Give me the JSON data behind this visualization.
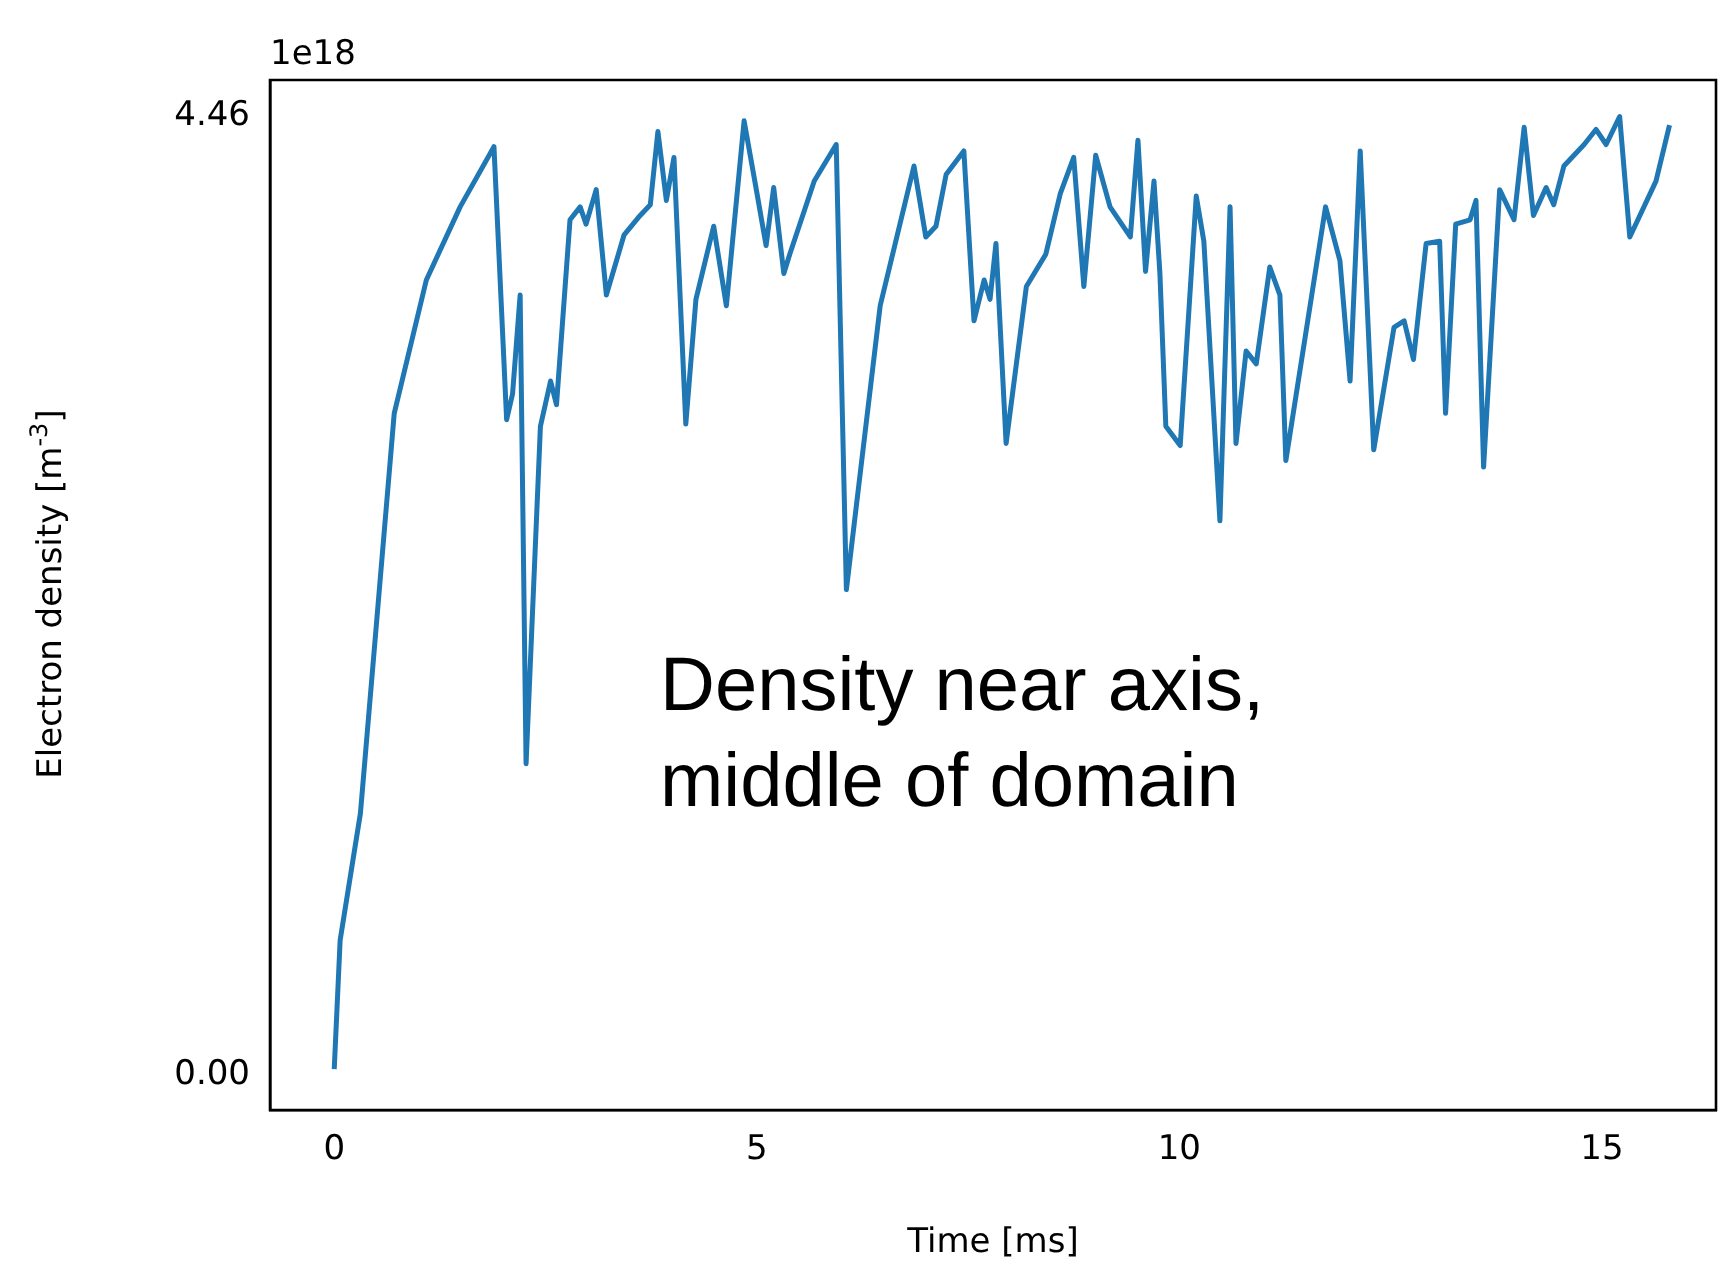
{
  "chart_data": {
    "type": "line",
    "xlabel": "Time [ms]",
    "ylabel": "Electron density [m$^{-3}$]",
    "annotations": [
      "1e18",
      "Density near axis,\nmiddle of domain"
    ],
    "xlim": [
      -0.76,
      16.35
    ],
    "ylim": [
      -0.16,
      4.63
    ],
    "xticks": [
      0,
      5,
      10,
      15
    ],
    "yticks": [
      {
        "value": 0,
        "label": "0.00"
      },
      {
        "value": 4.46,
        "label": "4.46"
      }
    ],
    "grid": false,
    "legend": false,
    "marker": "none",
    "line_style": "solid",
    "series": [
      {
        "color": "#1f77b4",
        "x": [
          0,
          0.07,
          0.31,
          0.71,
          1.09,
          1.49,
          1.89,
          2.04,
          2.11,
          2.2,
          2.27,
          2.44,
          2.56,
          2.63,
          2.79,
          2.91,
          2.98,
          3.1,
          3.22,
          3.43,
          3.62,
          3.74,
          3.83,
          3.93,
          4.02,
          4.16,
          4.28,
          4.49,
          4.64,
          4.85,
          4.99,
          5.11,
          5.2,
          5.32,
          5.39,
          5.68,
          5.94,
          6.06,
          6.46,
          6.86,
          7.0,
          7.12,
          7.24,
          7.45,
          7.57,
          7.69,
          7.76,
          7.83,
          7.95,
          8.19,
          8.42,
          8.59,
          8.75,
          8.87,
          9.01,
          9.18,
          9.42,
          9.51,
          9.6,
          9.7,
          9.77,
          9.84,
          10.01,
          10.2,
          10.29,
          10.48,
          10.6,
          10.67,
          10.79,
          10.91,
          11.07,
          11.19,
          11.26,
          11.73,
          11.9,
          12.02,
          12.14,
          12.3,
          12.54,
          12.66,
          12.77,
          12.92,
          13.08,
          13.15,
          13.27,
          13.44,
          13.51,
          13.6,
          13.79,
          13.96,
          14.08,
          14.19,
          14.34,
          14.43,
          14.55,
          14.79,
          14.93,
          15.05,
          15.21,
          15.33,
          15.64,
          15.8
        ],
        "values": [
          0.03,
          0.63,
          1.22,
          3.08,
          3.7,
          4.04,
          4.32,
          3.05,
          3.17,
          3.63,
          1.45,
          3.02,
          3.23,
          3.12,
          3.98,
          4.04,
          3.96,
          4.12,
          3.63,
          3.91,
          4.0,
          4.05,
          4.39,
          4.07,
          4.27,
          3.03,
          3.61,
          3.95,
          3.58,
          4.44,
          4.13,
          3.86,
          4.13,
          3.73,
          3.82,
          4.16,
          4.33,
          2.26,
          3.58,
          4.23,
          3.9,
          3.95,
          4.19,
          4.3,
          3.51,
          3.7,
          3.61,
          3.87,
          2.94,
          3.67,
          3.82,
          4.1,
          4.27,
          3.67,
          4.28,
          4.04,
          3.9,
          4.35,
          3.74,
          4.16,
          3.73,
          3.02,
          2.93,
          4.09,
          3.88,
          2.58,
          4.04,
          2.94,
          3.37,
          3.31,
          3.76,
          3.63,
          2.86,
          4.04,
          3.79,
          3.23,
          4.3,
          2.91,
          3.48,
          3.51,
          3.33,
          3.87,
          3.88,
          3.08,
          3.96,
          3.98,
          4.07,
          2.83,
          4.12,
          3.98,
          4.41,
          4.0,
          4.13,
          4.05,
          4.23,
          4.33,
          4.4,
          4.33,
          4.46,
          3.9,
          4.16,
          4.42
        ]
      }
    ]
  }
}
